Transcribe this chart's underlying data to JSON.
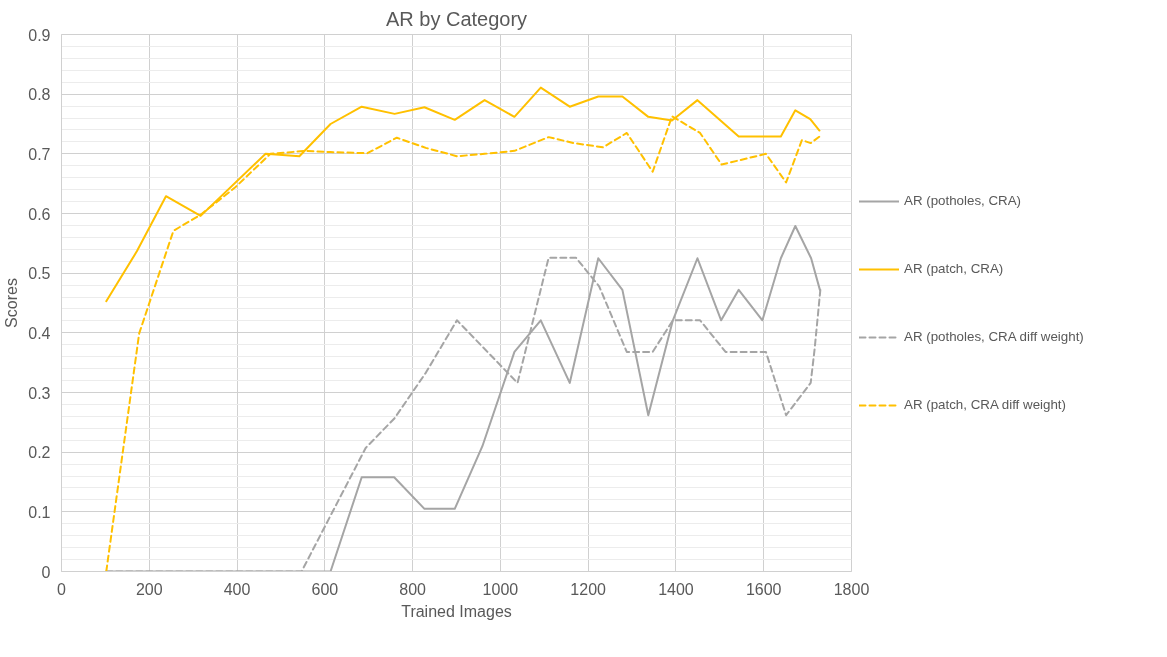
{
  "chart_data": {
    "type": "line",
    "title": "AR by Category",
    "xlabel": "Trained Images",
    "ylabel": "Scores",
    "xlim": [
      0,
      1800
    ],
    "xticks": [
      0,
      200,
      400,
      600,
      800,
      1000,
      1200,
      1400,
      1600,
      1800
    ],
    "ylim": [
      0,
      0.9
    ],
    "yticks": [
      0,
      0.1,
      0.2,
      0.3,
      0.4,
      0.5,
      0.6,
      0.7,
      0.8,
      0.9
    ],
    "grid": true,
    "legend": "right",
    "marker": "none",
    "series": [
      {
        "name": "AR (potholes, CRA)",
        "color": "#a5a5a5",
        "line_style": "solid",
        "x": [
          102,
          613,
          684,
          758,
          827,
          896,
          959,
          1032,
          1092,
          1158,
          1223,
          1278,
          1337,
          1393,
          1449,
          1503,
          1543,
          1597,
          1639,
          1672,
          1708,
          1728
        ],
        "values": [
          0,
          0,
          0.158,
          0.158,
          0.105,
          0.105,
          0.21,
          0.368,
          0.421,
          0.316,
          0.525,
          0.472,
          0.262,
          0.421,
          0.525,
          0.421,
          0.472,
          0.421,
          0.525,
          0.579,
          0.525,
          0.472
        ]
      },
      {
        "name": "AR (patch, CRA)",
        "color": "#ffc000",
        "line_style": "solid",
        "x": [
          102,
          172,
          238,
          317,
          465,
          542,
          613,
          684,
          759,
          827,
          896,
          964,
          1032,
          1092,
          1158,
          1223,
          1278,
          1337,
          1391,
          1449,
          1543,
          1639,
          1672,
          1706,
          1727
        ],
        "values": [
          0.453,
          0.537,
          0.629,
          0.596,
          0.7,
          0.696,
          0.75,
          0.779,
          0.767,
          0.778,
          0.757,
          0.79,
          0.762,
          0.811,
          0.779,
          0.796,
          0.796,
          0.762,
          0.756,
          0.79,
          0.729,
          0.729,
          0.773,
          0.758,
          0.739
        ]
      },
      {
        "name": "AR (potholes, CRA diff weight)",
        "color": "#a5a5a5",
        "line_style": "dashed",
        "x": [
          102,
          547,
          693,
          759,
          830,
          901,
          1039,
          1110,
          1172,
          1225,
          1288,
          1347,
          1393,
          1455,
          1513,
          1605,
          1651,
          1707,
          1716,
          1729
        ],
        "values": [
          0,
          0,
          0.207,
          0.257,
          0.333,
          0.421,
          0.316,
          0.526,
          0.526,
          0.478,
          0.368,
          0.368,
          0.421,
          0.421,
          0.368,
          0.368,
          0.262,
          0.316,
          0.373,
          0.472
        ]
      },
      {
        "name": "AR (patch, CRA diff weight)",
        "color": "#ffc000",
        "line_style": "dashed",
        "x": [
          102,
          177,
          255,
          317,
          396,
          476,
          556,
          613,
          697,
          764,
          830,
          901,
          964,
          1032,
          1110,
          1167,
          1234,
          1288,
          1347,
          1391,
          1455,
          1504,
          1605,
          1651,
          1687,
          1707,
          1729
        ],
        "values": [
          0,
          0.399,
          0.571,
          0.598,
          0.644,
          0.7,
          0.705,
          0.703,
          0.701,
          0.727,
          0.71,
          0.696,
          0.7,
          0.705,
          0.728,
          0.718,
          0.711,
          0.735,
          0.67,
          0.763,
          0.735,
          0.682,
          0.7,
          0.652,
          0.723,
          0.718,
          0.73
        ]
      }
    ]
  }
}
